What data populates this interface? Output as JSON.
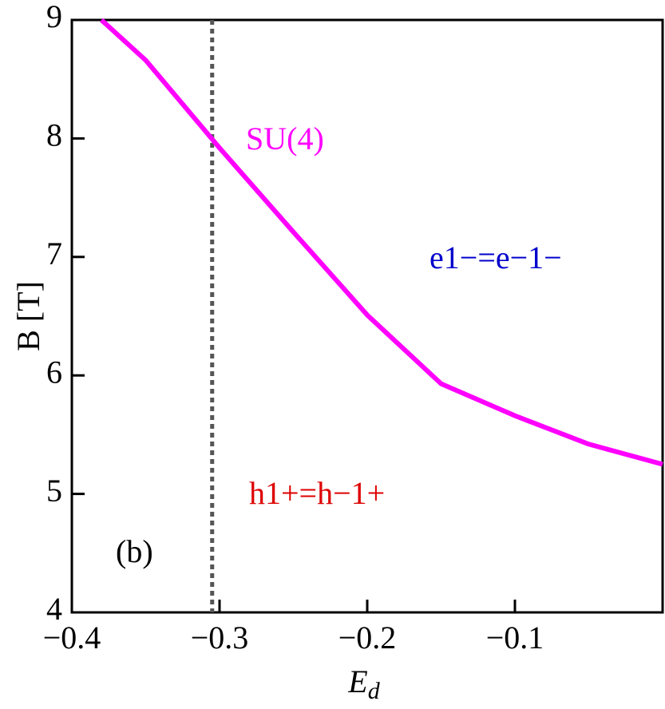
{
  "chart_data": {
    "type": "line",
    "x_label": "E",
    "x_label_subscript": "d",
    "y_label": "B [T]",
    "series": [
      {
        "name": "SU(4)",
        "color": "#ff00ff",
        "x": [
          -0.38,
          -0.35,
          -0.3,
          -0.25,
          -0.2,
          -0.15,
          -0.1,
          -0.05,
          0
        ],
        "values": [
          9.0,
          8.66,
          7.92,
          7.21,
          6.51,
          5.93,
          5.66,
          5.42,
          5.25
        ]
      }
    ],
    "vline": {
      "x": -0.305,
      "color": "#555555"
    },
    "annotations": [
      {
        "text": "SU(4)",
        "color": "#ff00ff"
      },
      {
        "text": "e1−=e−1−",
        "color": "#0000cc"
      },
      {
        "text": "h1+=h−1+",
        "color": "#dd0000"
      },
      {
        "text": "(b)",
        "color": "#000000"
      }
    ],
    "xlim": [
      -0.4,
      0
    ],
    "ylim": [
      4,
      9
    ],
    "xticks": [
      {
        "value": -0.4,
        "label": "−0.4"
      },
      {
        "value": -0.3,
        "label": "−0.3"
      },
      {
        "value": -0.2,
        "label": "−0.2"
      },
      {
        "value": -0.1,
        "label": "−0.1"
      }
    ],
    "yticks": [
      4,
      5,
      6,
      7,
      8,
      9
    ]
  }
}
